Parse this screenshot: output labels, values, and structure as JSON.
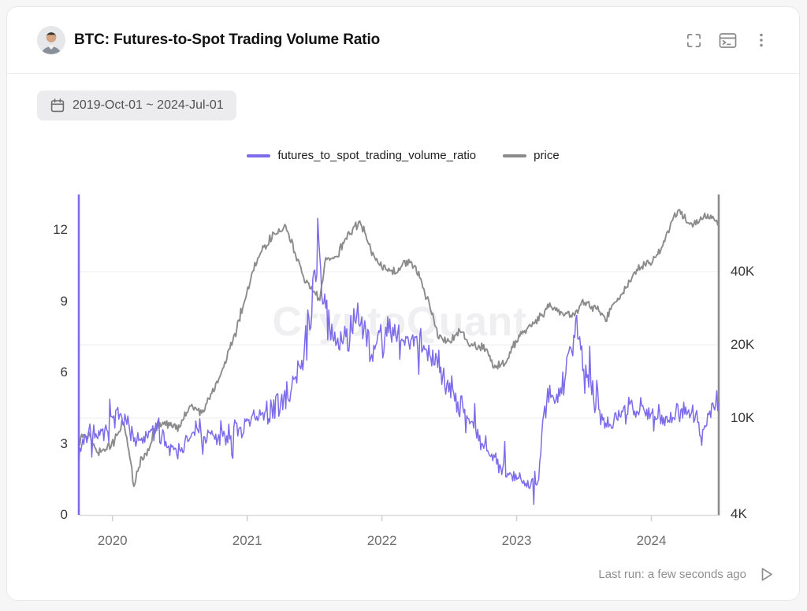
{
  "header": {
    "title": "BTC: Futures-to-Spot Trading Volume Ratio",
    "avatar_alt": "user-avatar",
    "actions": [
      {
        "icon": "fullscreen-icon"
      },
      {
        "icon": "terminal-icon"
      },
      {
        "icon": "kebab-menu-icon"
      }
    ]
  },
  "toolbar": {
    "date_range": "2019-Oct-01 ~ 2024-Jul-01",
    "date_icon": "calendar-icon"
  },
  "legend": [
    {
      "label": "futures_to_spot_trading_volume_ratio",
      "color": "#7c6cea"
    },
    {
      "label": "price",
      "color": "#8b8b8b"
    }
  ],
  "watermark": "CryptoQuant",
  "footer": {
    "last_run": "Last run: a few seconds ago",
    "run_icon": "play-icon"
  },
  "colors": {
    "ratio_line": "#7c6cea",
    "price_line": "#8b8b8b",
    "grid": "#f1f1f3",
    "axis_line": "#dcdcde"
  },
  "chart_data": {
    "type": "line",
    "title": "BTC: Futures-to-Spot Trading Volume Ratio",
    "x_axis": {
      "domain_years": [
        2019.75,
        2024.5
      ],
      "ticks": [
        {
          "t": 2020,
          "label": "2020"
        },
        {
          "t": 2021,
          "label": "2021"
        },
        {
          "t": 2022,
          "label": "2022"
        },
        {
          "t": 2023,
          "label": "2023"
        },
        {
          "t": 2024,
          "label": "2024"
        }
      ]
    },
    "left_axis": {
      "series": "futures_to_spot_trading_volume_ratio",
      "scale": "linear",
      "range": [
        0,
        13.5
      ],
      "ticks": [
        {
          "v": 0,
          "label": "0"
        },
        {
          "v": 3,
          "label": "3"
        },
        {
          "v": 6,
          "label": "6"
        },
        {
          "v": 9,
          "label": "9"
        },
        {
          "v": 12,
          "label": "12"
        }
      ]
    },
    "right_axis": {
      "series": "price",
      "scale": "log",
      "range_kusd": [
        4,
        83
      ],
      "ticks": [
        {
          "v": 40,
          "label": "40K"
        },
        {
          "v": 20,
          "label": "20K"
        },
        {
          "v": 10,
          "label": "10K"
        },
        {
          "v": 4,
          "label": "4K"
        }
      ],
      "gridlines_kusd": [
        10,
        20,
        40
      ]
    },
    "series": [
      {
        "name": "futures_to_spot_trading_volume_ratio",
        "axis": "left",
        "color": "#7c6cea",
        "leading_vertical_line": true,
        "points": [
          [
            2019.75,
            2.6
          ],
          [
            2019.79,
            3.2
          ],
          [
            2019.83,
            3.5
          ],
          [
            2019.92,
            3.3
          ],
          [
            2020.0,
            3.8
          ],
          [
            2020.08,
            4.4
          ],
          [
            2020.13,
            3.6
          ],
          [
            2020.17,
            3.0
          ],
          [
            2020.25,
            3.2
          ],
          [
            2020.33,
            3.7
          ],
          [
            2020.42,
            2.9
          ],
          [
            2020.5,
            2.8
          ],
          [
            2020.58,
            3.2
          ],
          [
            2020.63,
            3.7
          ],
          [
            2020.67,
            3.4
          ],
          [
            2020.75,
            3.2
          ],
          [
            2020.83,
            3.3
          ],
          [
            2020.92,
            3.5
          ],
          [
            2021.0,
            3.8
          ],
          [
            2021.08,
            4.1
          ],
          [
            2021.17,
            4.4
          ],
          [
            2021.25,
            4.7
          ],
          [
            2021.33,
            5.3
          ],
          [
            2021.42,
            6.6
          ],
          [
            2021.5,
            9.8
          ],
          [
            2021.53,
            12.2
          ],
          [
            2021.56,
            8.8
          ],
          [
            2021.62,
            7.6
          ],
          [
            2021.67,
            7.3
          ],
          [
            2021.75,
            7.7
          ],
          [
            2021.83,
            8.1
          ],
          [
            2021.92,
            7.1
          ],
          [
            2022.0,
            7.3
          ],
          [
            2022.08,
            7.9
          ],
          [
            2022.17,
            7.1
          ],
          [
            2022.25,
            7.6
          ],
          [
            2022.33,
            6.9
          ],
          [
            2022.42,
            6.3
          ],
          [
            2022.5,
            5.5
          ],
          [
            2022.58,
            4.6
          ],
          [
            2022.67,
            3.9
          ],
          [
            2022.75,
            3.1
          ],
          [
            2022.83,
            2.4
          ],
          [
            2022.92,
            1.8
          ],
          [
            2023.0,
            1.6
          ],
          [
            2023.08,
            1.4
          ],
          [
            2023.16,
            1.3
          ],
          [
            2023.2,
            4.5
          ],
          [
            2023.25,
            4.9
          ],
          [
            2023.33,
            5.0
          ],
          [
            2023.38,
            6.8
          ],
          [
            2023.42,
            7.3
          ],
          [
            2023.46,
            7.9
          ],
          [
            2023.5,
            5.6
          ],
          [
            2023.54,
            6.2
          ],
          [
            2023.58,
            4.7
          ],
          [
            2023.67,
            4.0
          ],
          [
            2023.75,
            4.1
          ],
          [
            2023.83,
            4.4
          ],
          [
            2023.92,
            4.6
          ],
          [
            2024.0,
            4.4
          ],
          [
            2024.08,
            4.1
          ],
          [
            2024.17,
            4.3
          ],
          [
            2024.25,
            4.6
          ],
          [
            2024.33,
            4.0
          ],
          [
            2024.37,
            3.3
          ],
          [
            2024.42,
            4.2
          ],
          [
            2024.5,
            4.8
          ]
        ]
      },
      {
        "name": "price",
        "axis": "right",
        "color": "#8b8b8b",
        "unit": "K USD",
        "trailing_vertical_line": true,
        "points": [
          [
            2019.75,
            8.3
          ],
          [
            2019.83,
            8.7
          ],
          [
            2019.88,
            7.3
          ],
          [
            2019.92,
            7.2
          ],
          [
            2020.0,
            7.8
          ],
          [
            2020.08,
            9.6
          ],
          [
            2020.16,
            5.2
          ],
          [
            2020.21,
            6.8
          ],
          [
            2020.25,
            7.1
          ],
          [
            2020.33,
            9.3
          ],
          [
            2020.42,
            9.5
          ],
          [
            2020.5,
            9.2
          ],
          [
            2020.58,
            11.4
          ],
          [
            2020.67,
            10.5
          ],
          [
            2020.75,
            13.0
          ],
          [
            2020.83,
            16.5
          ],
          [
            2020.92,
            23.0
          ],
          [
            2021.0,
            33.0
          ],
          [
            2021.08,
            46.0
          ],
          [
            2021.17,
            55.0
          ],
          [
            2021.25,
            59.0
          ],
          [
            2021.28,
            62.0
          ],
          [
            2021.33,
            52.0
          ],
          [
            2021.42,
            37.0
          ],
          [
            2021.5,
            33.0
          ],
          [
            2021.54,
            30.5
          ],
          [
            2021.58,
            44.0
          ],
          [
            2021.67,
            46.5
          ],
          [
            2021.75,
            57.0
          ],
          [
            2021.83,
            63.5
          ],
          [
            2021.87,
            59.0
          ],
          [
            2021.92,
            48.5
          ],
          [
            2022.0,
            41.5
          ],
          [
            2022.08,
            39.5
          ],
          [
            2022.17,
            44.0
          ],
          [
            2022.25,
            42.0
          ],
          [
            2022.33,
            31.5
          ],
          [
            2022.42,
            21.5
          ],
          [
            2022.5,
            20.5
          ],
          [
            2022.58,
            23.0
          ],
          [
            2022.67,
            19.5
          ],
          [
            2022.75,
            19.8
          ],
          [
            2022.83,
            16.3
          ],
          [
            2022.92,
            16.8
          ],
          [
            2023.0,
            20.8
          ],
          [
            2023.08,
            23.6
          ],
          [
            2023.17,
            26.0
          ],
          [
            2023.25,
            29.0
          ],
          [
            2023.33,
            27.3
          ],
          [
            2023.42,
            26.5
          ],
          [
            2023.5,
            30.2
          ],
          [
            2023.58,
            28.5
          ],
          [
            2023.67,
            26.0
          ],
          [
            2023.75,
            30.5
          ],
          [
            2023.83,
            36.0
          ],
          [
            2023.92,
            42.5
          ],
          [
            2024.0,
            43.5
          ],
          [
            2024.08,
            50.0
          ],
          [
            2024.17,
            67.0
          ],
          [
            2024.2,
            71.5
          ],
          [
            2024.25,
            66.0
          ],
          [
            2024.33,
            62.5
          ],
          [
            2024.42,
            69.0
          ],
          [
            2024.46,
            66.0
          ],
          [
            2024.5,
            61.5
          ]
        ]
      }
    ]
  }
}
